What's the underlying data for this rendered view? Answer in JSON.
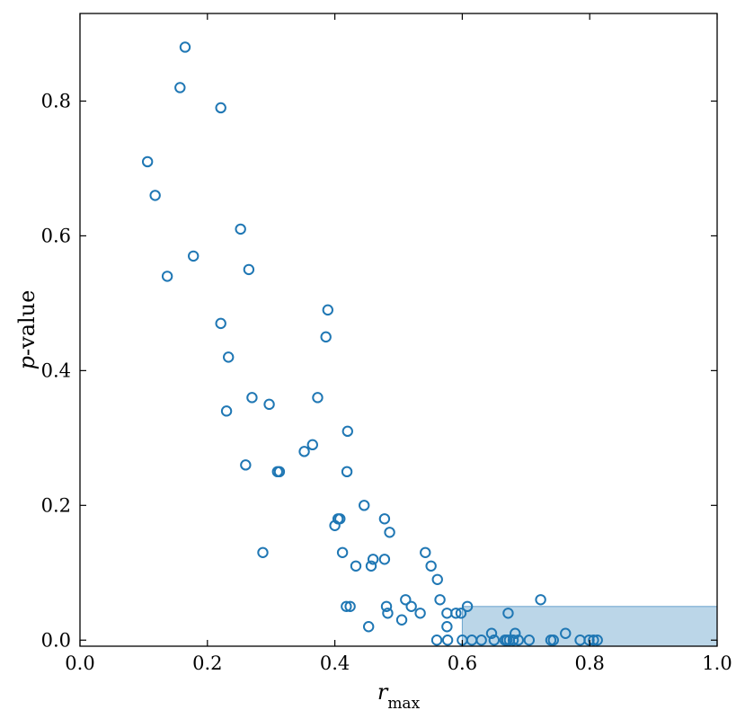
{
  "chart_data": {
    "type": "scatter",
    "xlabel": {
      "main": "r",
      "sub": "max"
    },
    "ylabel": {
      "italic": "p",
      "rest": "-value"
    },
    "xlim": [
      0.0,
      1.0
    ],
    "ylim": [
      -0.009,
      0.93
    ],
    "xticks": [
      {
        "value": 0.0,
        "label": "0.0"
      },
      {
        "value": 0.2,
        "label": "0.2"
      },
      {
        "value": 0.4,
        "label": "0.4"
      },
      {
        "value": 0.6,
        "label": "0.6"
      },
      {
        "value": 0.8,
        "label": "0.8"
      },
      {
        "value": 1.0,
        "label": "1.0"
      }
    ],
    "yticks": [
      {
        "value": 0.0,
        "label": "0.0"
      },
      {
        "value": 0.2,
        "label": "0.2"
      },
      {
        "value": 0.4,
        "label": "0.4"
      },
      {
        "value": 0.6,
        "label": "0.6"
      },
      {
        "value": 0.8,
        "label": "0.8"
      }
    ],
    "marker": {
      "style": "open-circle",
      "color": "#1f77b4"
    },
    "shaded_region": {
      "x": [
        0.6,
        1.0
      ],
      "y": [
        0.0,
        0.05
      ],
      "color": "#1f77b4",
      "opacity": 0.3
    },
    "grid": false,
    "points": [
      {
        "x": 0.165,
        "y": 0.88
      },
      {
        "x": 0.157,
        "y": 0.82
      },
      {
        "x": 0.221,
        "y": 0.79
      },
      {
        "x": 0.106,
        "y": 0.71
      },
      {
        "x": 0.118,
        "y": 0.66
      },
      {
        "x": 0.252,
        "y": 0.61
      },
      {
        "x": 0.178,
        "y": 0.57
      },
      {
        "x": 0.137,
        "y": 0.54
      },
      {
        "x": 0.265,
        "y": 0.55
      },
      {
        "x": 0.389,
        "y": 0.49
      },
      {
        "x": 0.221,
        "y": 0.47
      },
      {
        "x": 0.386,
        "y": 0.45
      },
      {
        "x": 0.233,
        "y": 0.42
      },
      {
        "x": 0.27,
        "y": 0.36
      },
      {
        "x": 0.297,
        "y": 0.35
      },
      {
        "x": 0.373,
        "y": 0.36
      },
      {
        "x": 0.23,
        "y": 0.34
      },
      {
        "x": 0.42,
        "y": 0.31
      },
      {
        "x": 0.365,
        "y": 0.29
      },
      {
        "x": 0.352,
        "y": 0.28
      },
      {
        "x": 0.26,
        "y": 0.26
      },
      {
        "x": 0.31,
        "y": 0.25
      },
      {
        "x": 0.313,
        "y": 0.25
      },
      {
        "x": 0.419,
        "y": 0.25
      },
      {
        "x": 0.446,
        "y": 0.2
      },
      {
        "x": 0.405,
        "y": 0.18
      },
      {
        "x": 0.408,
        "y": 0.18
      },
      {
        "x": 0.4,
        "y": 0.17
      },
      {
        "x": 0.478,
        "y": 0.18
      },
      {
        "x": 0.486,
        "y": 0.16
      },
      {
        "x": 0.287,
        "y": 0.13
      },
      {
        "x": 0.412,
        "y": 0.13
      },
      {
        "x": 0.433,
        "y": 0.11
      },
      {
        "x": 0.46,
        "y": 0.12
      },
      {
        "x": 0.457,
        "y": 0.11
      },
      {
        "x": 0.478,
        "y": 0.12
      },
      {
        "x": 0.542,
        "y": 0.13
      },
      {
        "x": 0.551,
        "y": 0.11
      },
      {
        "x": 0.561,
        "y": 0.09
      },
      {
        "x": 0.565,
        "y": 0.06
      },
      {
        "x": 0.511,
        "y": 0.06
      },
      {
        "x": 0.418,
        "y": 0.05
      },
      {
        "x": 0.424,
        "y": 0.05
      },
      {
        "x": 0.481,
        "y": 0.05
      },
      {
        "x": 0.52,
        "y": 0.05
      },
      {
        "x": 0.483,
        "y": 0.04
      },
      {
        "x": 0.534,
        "y": 0.04
      },
      {
        "x": 0.505,
        "y": 0.03
      },
      {
        "x": 0.576,
        "y": 0.04
      },
      {
        "x": 0.59,
        "y": 0.04
      },
      {
        "x": 0.598,
        "y": 0.04
      },
      {
        "x": 0.608,
        "y": 0.05
      },
      {
        "x": 0.576,
        "y": 0.02
      },
      {
        "x": 0.453,
        "y": 0.02
      },
      {
        "x": 0.56,
        "y": 0.0
      },
      {
        "x": 0.577,
        "y": 0.0
      },
      {
        "x": 0.6,
        "y": 0.0
      },
      {
        "x": 0.615,
        "y": 0.0
      },
      {
        "x": 0.63,
        "y": 0.0
      },
      {
        "x": 0.672,
        "y": 0.04
      },
      {
        "x": 0.723,
        "y": 0.06
      },
      {
        "x": 0.646,
        "y": 0.01
      },
      {
        "x": 0.65,
        "y": 0.0
      },
      {
        "x": 0.667,
        "y": 0.0
      },
      {
        "x": 0.67,
        "y": 0.0
      },
      {
        "x": 0.674,
        "y": 0.0
      },
      {
        "x": 0.68,
        "y": 0.0
      },
      {
        "x": 0.683,
        "y": 0.01
      },
      {
        "x": 0.688,
        "y": 0.0
      },
      {
        "x": 0.705,
        "y": 0.0
      },
      {
        "x": 0.739,
        "y": 0.0
      },
      {
        "x": 0.743,
        "y": 0.0
      },
      {
        "x": 0.762,
        "y": 0.01
      },
      {
        "x": 0.785,
        "y": 0.0
      },
      {
        "x": 0.799,
        "y": 0.0
      },
      {
        "x": 0.806,
        "y": 0.0
      },
      {
        "x": 0.812,
        "y": 0.0
      }
    ]
  }
}
